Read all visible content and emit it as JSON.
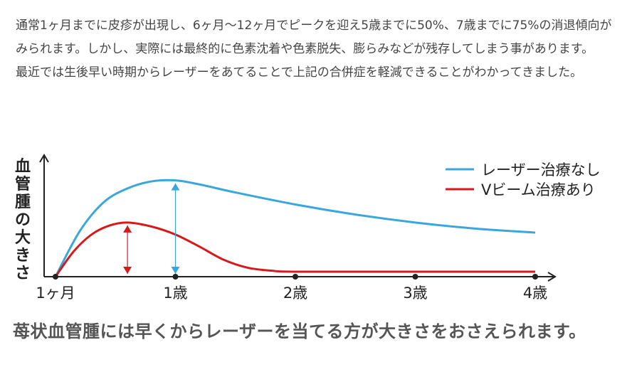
{
  "text": {
    "para1": "通常1ヶ月までに皮疹が出現し、6ヶ月～12ヶ月でピークを迎え5歳までに50%、7歳までに75%の消退傾向がみられます。しかし、実際には最終的に色素沈着や色素脱失、膨らみなどが残存してしまう事があります。",
    "para2": "最近では生後早い時期からレーザーをあてることで上記の合併症を軽減できることがわかってきました。",
    "caption": "苺状血管腫には早くからレーザーを当てる方が大きさをおさえられます。"
  },
  "colors": {
    "no_treatment": "#3aa7dc",
    "with_treatment": "#d7191c",
    "axis": "#222222"
  },
  "chart_data": {
    "type": "line",
    "ylabel": "血管腫の大きさ",
    "ylabel_chars": [
      "血",
      "管",
      "腫",
      "の",
      "大",
      "き",
      "さ"
    ],
    "x_ticks": [
      "1ヶ月",
      "1歳",
      "2歳",
      "3歳",
      "4歳"
    ],
    "x_tick_values": [
      0,
      1,
      2,
      3,
      4
    ],
    "xlim": [
      0,
      4
    ],
    "ylim": [
      0,
      1
    ],
    "grid": false,
    "legend_position": "top-right",
    "series": [
      {
        "name": "レーザー治療なし",
        "color_key": "no_treatment",
        "points": [
          [
            0,
            0
          ],
          [
            0.2,
            0.45
          ],
          [
            0.4,
            0.74
          ],
          [
            0.6,
            0.88
          ],
          [
            0.8,
            0.95
          ],
          [
            1.0,
            0.96
          ],
          [
            1.2,
            0.92
          ],
          [
            1.5,
            0.84
          ],
          [
            2.0,
            0.72
          ],
          [
            2.5,
            0.62
          ],
          [
            3.0,
            0.54
          ],
          [
            3.5,
            0.48
          ],
          [
            4.0,
            0.44
          ]
        ]
      },
      {
        "name": "Vビーム治療あり",
        "color_key": "with_treatment",
        "points": [
          [
            0,
            0
          ],
          [
            0.15,
            0.25
          ],
          [
            0.3,
            0.42
          ],
          [
            0.45,
            0.51
          ],
          [
            0.6,
            0.54
          ],
          [
            0.8,
            0.5
          ],
          [
            1.0,
            0.42
          ],
          [
            1.2,
            0.3
          ],
          [
            1.4,
            0.17
          ],
          [
            1.6,
            0.09
          ],
          [
            1.8,
            0.06
          ],
          [
            2.0,
            0.05
          ],
          [
            3.0,
            0.05
          ],
          [
            4.0,
            0.05
          ]
        ]
      }
    ],
    "arrows": [
      {
        "x": 0.6,
        "from": 0,
        "to": 0.54,
        "color_key": "with_treatment"
      },
      {
        "x": 1.0,
        "from": 0,
        "to": 0.96,
        "color_key": "no_treatment"
      }
    ]
  }
}
